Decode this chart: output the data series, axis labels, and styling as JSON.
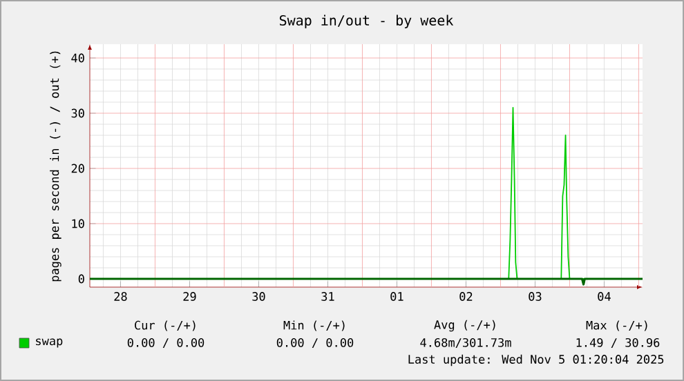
{
  "chart_data": {
    "type": "line",
    "title": "Swap in/out - by week",
    "ylabel": "pages per second in (-) / out (+)",
    "xlim": [
      "2025-10-28T01:20",
      "2025-11-05T01:20"
    ],
    "ylim": [
      -1.5,
      42.5
    ],
    "xticks": [
      {
        "value": "2025-10-28T12:00",
        "label": "28"
      },
      {
        "value": "2025-10-29T12:00",
        "label": "29"
      },
      {
        "value": "2025-10-30T12:00",
        "label": "30"
      },
      {
        "value": "2025-10-31T12:00",
        "label": "31"
      },
      {
        "value": "2025-11-01T12:00",
        "label": "01"
      },
      {
        "value": "2025-11-02T12:00",
        "label": "02"
      },
      {
        "value": "2025-11-03T12:00",
        "label": "03"
      },
      {
        "value": "2025-11-04T12:00",
        "label": "04"
      }
    ],
    "yticks": [
      0,
      10,
      20,
      30,
      40
    ],
    "grid": true,
    "legend": "bottom",
    "marker": "none",
    "series": [
      {
        "name": "swap",
        "color": "#00cc00",
        "x": [
          "2025-10-28T01:20",
          "2025-11-03T02:50",
          "2025-11-03T03:20",
          "2025-11-03T03:50",
          "2025-11-03T04:20",
          "2025-11-03T04:50",
          "2025-11-03T05:15",
          "2025-11-03T05:45",
          "2025-11-03T21:05",
          "2025-11-03T21:35",
          "2025-11-03T22:05",
          "2025-11-03T22:35",
          "2025-11-03T23:00",
          "2025-11-03T23:30",
          "2025-11-04T00:00",
          "2025-11-05T01:20"
        ],
        "values": [
          0,
          0,
          7,
          18,
          31,
          18,
          3,
          0,
          0,
          15,
          17,
          26,
          14,
          4,
          0,
          0
        ]
      },
      {
        "color": "#006600",
        "x": [
          "2025-10-28T01:20",
          "2025-11-04T04:20",
          "2025-11-04T04:50",
          "2025-11-04T05:15",
          "2025-11-05T01:20"
        ],
        "values": [
          0,
          0,
          -1,
          0,
          0
        ]
      }
    ],
    "annotations": [
      "Cur (-/+)",
      "Min (-/+)",
      "Avg (-/+)",
      "Max (-/+)",
      "0.00 / 0.00",
      "0.00 / 0.00",
      "4.68m/301.73m",
      "1.49 / 30.96",
      "Last update: Wed Nov 5 01:20:04 2025"
    ]
  }
}
